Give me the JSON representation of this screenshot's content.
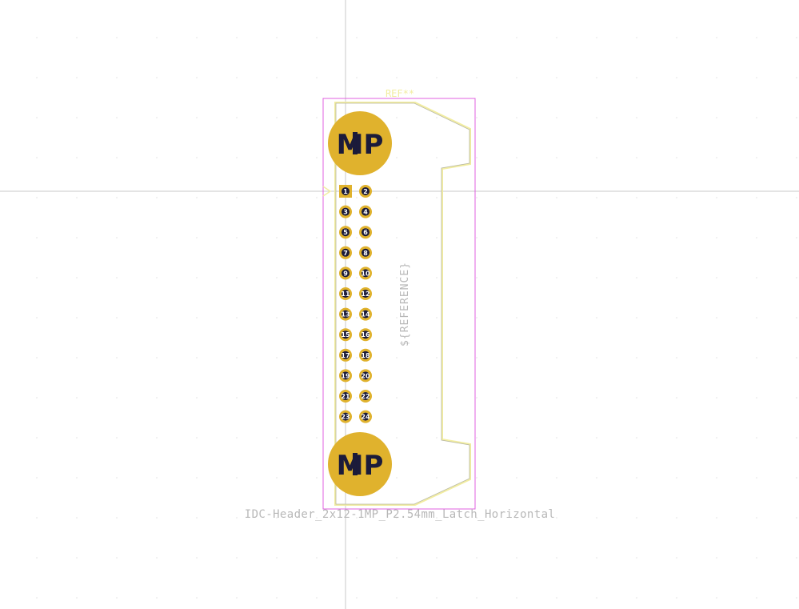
{
  "footprint": {
    "reference": "REF**",
    "value": "IDC-Header_2x12-1MP_P2.54mm_Latch_Horizontal",
    "user_reference": "${REFERENCE}",
    "mounting_pad_label": "MP",
    "pins": [
      "1",
      "2",
      "3",
      "4",
      "5",
      "6",
      "7",
      "8",
      "9",
      "10",
      "11",
      "12",
      "13",
      "14",
      "15",
      "16",
      "17",
      "18",
      "19",
      "20",
      "21",
      "22",
      "23",
      "24"
    ]
  },
  "colors": {
    "background": "#ffffff",
    "crosshair": "#c8c8c8",
    "courtyard": "#e060e0",
    "silkscreen": "#f2eda1",
    "fab_text": "#b8b8b8",
    "pad": "#e0b22d",
    "hole": "#1b1b3a"
  }
}
